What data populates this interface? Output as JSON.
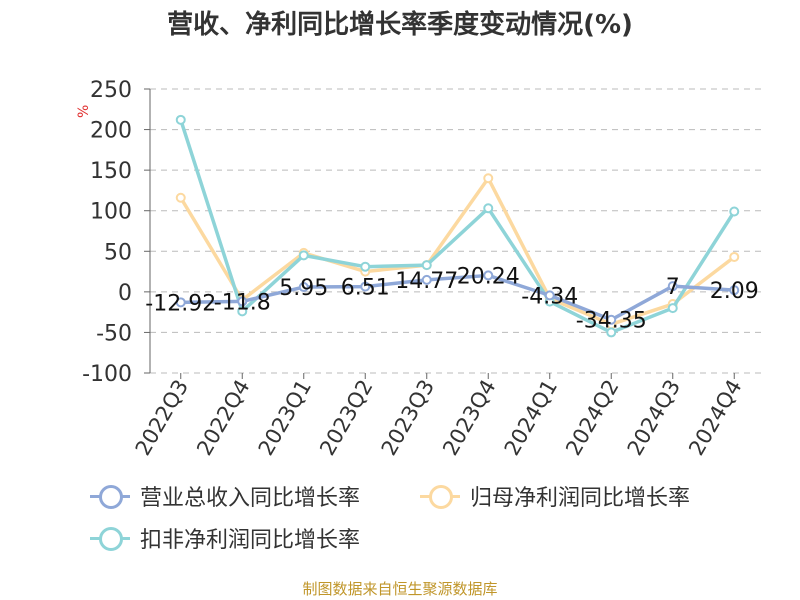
{
  "chart_data": {
    "type": "line",
    "title": "营收、净利同比增长率季度变动情况(%)",
    "ylabel": "%",
    "ylim": [
      -100,
      250
    ],
    "yticks": [
      250,
      200,
      150,
      100,
      50,
      0,
      -50,
      -100
    ],
    "grid": true,
    "legend_position": "bottom",
    "categories": [
      "2022Q3",
      "2022Q4",
      "2023Q1",
      "2023Q2",
      "2023Q3",
      "2023Q4",
      "2024Q1",
      "2024Q2",
      "2024Q3",
      "2024Q4"
    ],
    "series": [
      {
        "name": "营业总收入同比增长率",
        "color": "#8fa8d8",
        "values": [
          -12.92,
          -11.8,
          5.95,
          6.51,
          14.77,
          20.24,
          -4.34,
          -34.35,
          7,
          2.09
        ],
        "labels": [
          "-12.92",
          "-11.8",
          "5.95",
          "6.51",
          "14.77",
          "20.24",
          "-4.34",
          "-34.35",
          "7",
          "2.09"
        ]
      },
      {
        "name": "归母净利润同比增长率",
        "color": "#fcd9a0",
        "values": [
          116,
          -10,
          48,
          25,
          33,
          140,
          -8,
          -40,
          -15,
          43
        ]
      },
      {
        "name": "扣非净利润同比增长率",
        "color": "#8ed4d8",
        "values": [
          212,
          -24,
          45,
          31,
          33,
          103,
          -12,
          -50,
          -20,
          99
        ]
      }
    ]
  },
  "source": "制图数据来自恒生聚源数据库"
}
